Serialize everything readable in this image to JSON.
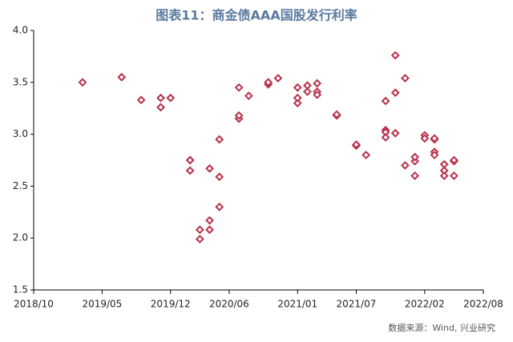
{
  "chart_data": {
    "type": "scatter",
    "title": "图表11：商金债AAA国股发行利率",
    "source": "数据来源：Wind, 兴业研究",
    "color": "#b8324a",
    "xlim": [
      "2018/10",
      "2022/08"
    ],
    "xticks": [
      "2018/10",
      "2019/05",
      "2019/12",
      "2020/06",
      "2021/01",
      "2021/07",
      "2022/02",
      "2022/08"
    ],
    "ylim": [
      1.5,
      4.0
    ],
    "yticks": [
      {
        "value": 1.5,
        "label": "1.5"
      },
      {
        "value": 2,
        "label": "2.0"
      },
      {
        "value": 2.5,
        "label": "2.5"
      },
      {
        "value": 3,
        "label": "3.0"
      },
      {
        "value": 3.5,
        "label": "3.5"
      },
      {
        "value": 4,
        "label": "4.0"
      }
    ],
    "x": [
      "2019/03",
      "2019/07",
      "2019/09",
      "2019/11",
      "2019/12",
      "2019/11",
      "2020/02",
      "2020/02",
      "2020/02",
      "2020/03",
      "2020/04",
      "2020/03",
      "2020/04",
      "2020/04",
      "2020/05",
      "2020/05",
      "2020/05",
      "2020/07",
      "2020/07",
      "2020/07",
      "2020/08",
      "2020/10",
      "2020/10",
      "2020/10",
      "2020/11",
      "2021/01",
      "2021/01",
      "2021/01",
      "2021/02",
      "2021/02",
      "2021/03",
      "2021/03",
      "2021/03",
      "2021/05",
      "2021/05",
      "2021/07",
      "2021/07",
      "2021/08",
      "2021/10",
      "2021/10",
      "2021/10",
      "2021/10",
      "2021/11",
      "2021/11",
      "2021/11",
      "2021/12",
      "2021/12",
      "2022/01",
      "2022/01",
      "2022/01",
      "2022/02",
      "2022/02",
      "2022/03",
      "2022/03",
      "2022/03",
      "2022/03",
      "2022/04",
      "2022/04",
      "2022/04",
      "2022/05",
      "2022/05",
      "2022/05"
    ],
    "values": [
      3.5,
      3.55,
      3.33,
      3.35,
      3.35,
      3.26,
      2.65,
      2.75,
      2.75,
      2.08,
      2.08,
      1.99,
      2.17,
      2.67,
      2.59,
      2.95,
      2.3,
      3.15,
      3.18,
      3.45,
      3.37,
      3.5,
      3.48,
      3.5,
      3.54,
      3.3,
      3.35,
      3.45,
      3.41,
      3.47,
      3.49,
      3.41,
      3.38,
      3.18,
      3.19,
      2.89,
      2.9,
      2.8,
      3.04,
      3.02,
      3.32,
      2.97,
      3.01,
      3.76,
      3.4,
      3.54,
      2.7,
      2.74,
      2.78,
      2.6,
      2.99,
      2.96,
      2.95,
      2.96,
      2.83,
      2.8,
      2.65,
      2.6,
      2.71,
      2.6,
      2.74,
      2.75
    ]
  }
}
